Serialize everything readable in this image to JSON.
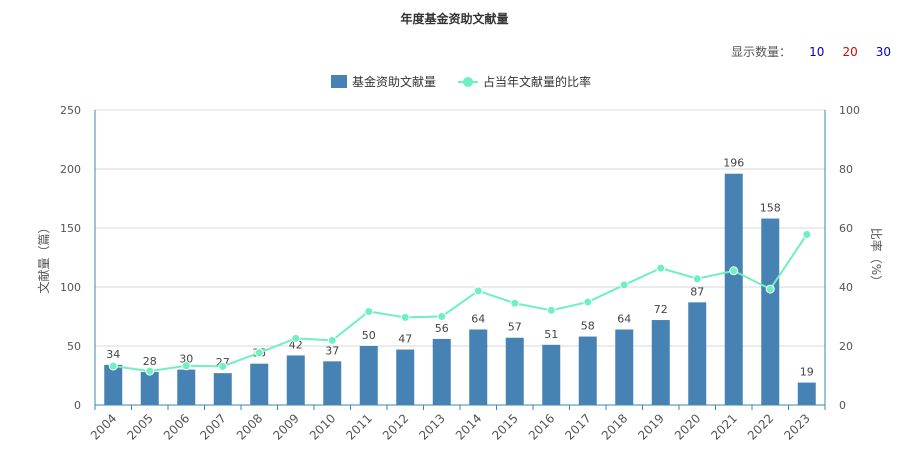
{
  "chart_data": {
    "type": "bar",
    "title": "年度基金资助文献量",
    "categories": [
      "2004",
      "2005",
      "2006",
      "2007",
      "2008",
      "2009",
      "2010",
      "2011",
      "2012",
      "2013",
      "2014",
      "2015",
      "2016",
      "2017",
      "2018",
      "2019",
      "2020",
      "2021",
      "2022",
      "2023"
    ],
    "series": [
      {
        "name": "基金资助文献量",
        "type": "bar",
        "axis": "left",
        "color": "#4682b4",
        "values": [
          34,
          28,
          30,
          27,
          35,
          42,
          37,
          50,
          47,
          56,
          64,
          57,
          51,
          58,
          64,
          72,
          87,
          196,
          158,
          19
        ]
      },
      {
        "name": "占当年文献量的比率",
        "type": "line",
        "axis": "right",
        "color": "#6ef0c0",
        "values": [
          13.2,
          11.5,
          13.3,
          13.1,
          17.7,
          22.6,
          21.9,
          31.7,
          29.7,
          30.0,
          38.7,
          34.5,
          32.1,
          34.9,
          40.7,
          46.4,
          42.8,
          45.5,
          39.3,
          57.8
        ]
      }
    ],
    "ylabel": "文献量（篇）",
    "y2label": "比率（%）",
    "ylim": [
      0,
      250
    ],
    "y2lim": [
      0,
      100
    ],
    "yticks": [
      "0",
      "50",
      "100",
      "150",
      "200",
      "250"
    ],
    "y2ticks": [
      "0",
      "20",
      "40",
      "60",
      "80",
      "100"
    ],
    "grid": true,
    "legend_position": "top-center",
    "bar_labels": [
      "34",
      "28",
      "30",
      "27",
      "35",
      "42",
      "37",
      "50",
      "47",
      "56",
      "64",
      "57",
      "51",
      "58",
      "64",
      "72",
      "87",
      "196",
      "158",
      "19"
    ]
  },
  "display_count": {
    "label": "显示数量：",
    "options": [
      {
        "text": "10",
        "color": "#0000cc"
      },
      {
        "text": "20",
        "color": "#dd0000"
      },
      {
        "text": "30",
        "color": "#0000cc"
      }
    ]
  }
}
